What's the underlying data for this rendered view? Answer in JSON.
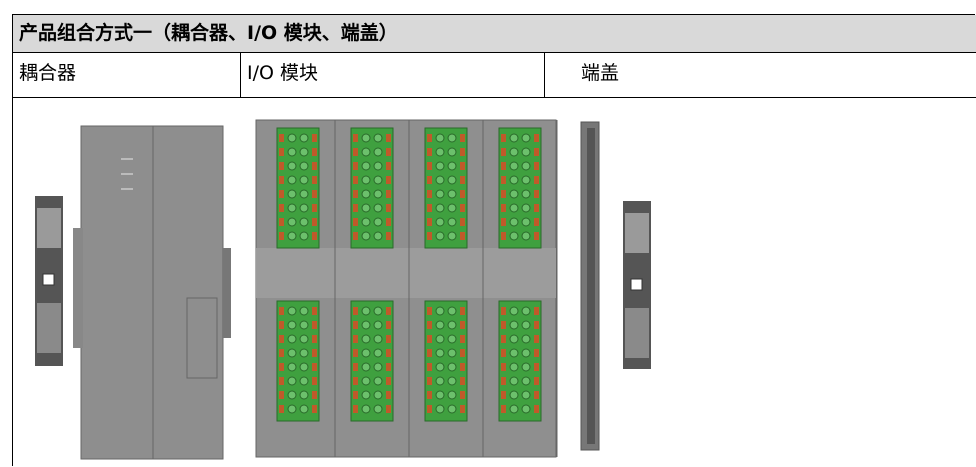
{
  "table": {
    "title": "产品组合方式一（耦合器、I/O 模块、端盖）",
    "columns": [
      "耦合器",
      "I/O 模块",
      "端盖"
    ]
  }
}
